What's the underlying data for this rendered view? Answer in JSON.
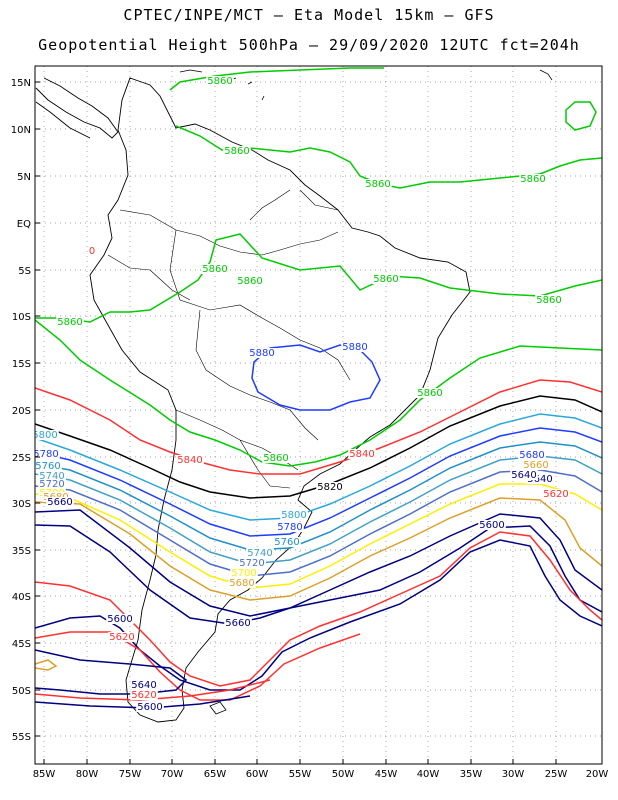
{
  "title_line1": "CPTEC/INPE/MCT –  Eta Model 15km – GFS",
  "title_line2": "Geopotential Height 500hPa – 29/09/2020 12UTC fct=204h",
  "lat_labels": [
    "15N",
    "10N",
    "5N",
    "EQ",
    "5S",
    "10S",
    "15S",
    "20S",
    "25S",
    "30S",
    "35S",
    "40S",
    "45S",
    "50S",
    "55S"
  ],
  "lon_labels": [
    "85W",
    "80W",
    "75W",
    "70W",
    "65W",
    "60W",
    "55W",
    "50W",
    "45W",
    "40W",
    "35W",
    "30W",
    "25W",
    "20W"
  ],
  "colors": {
    "c5880": "#1e3cff",
    "c5860": "#00cc00",
    "c5840": "#ff3030",
    "c5820": "#000000",
    "c5800": "#2aa7dc",
    "c5780": "#1e3cff",
    "c5760": "#1e90c8",
    "c5740": "#40a0c8",
    "c5720": "#4e6ec8",
    "c5700": "#ffee00",
    "c5680": "#dca028",
    "c5660": "#000080",
    "coast": "#000000"
  },
  "contour_labels": [
    {
      "text": "5860",
      "color": "c5860"
    },
    {
      "text": "5860",
      "color": "c5860"
    },
    {
      "text": "5860",
      "color": "c5860"
    },
    {
      "text": "5860",
      "color": "c5860"
    },
    {
      "text": "5860",
      "color": "c5860"
    },
    {
      "text": "5860",
      "color": "c5860"
    },
    {
      "text": "5860",
      "color": "c5860"
    },
    {
      "text": "5860",
      "color": "c5860"
    },
    {
      "text": "5860",
      "color": "c5860"
    },
    {
      "text": "5860",
      "color": "c5860"
    },
    {
      "text": "5860",
      "color": "c5860"
    },
    {
      "text": "5880",
      "color": "c5880"
    },
    {
      "text": "5880",
      "color": "c5880"
    },
    {
      "text": "5840",
      "color": "c5840"
    },
    {
      "text": "5840",
      "color": "c5840"
    },
    {
      "text": "5820",
      "color": "c5820"
    },
    {
      "text": "5800",
      "color": "c5800"
    },
    {
      "text": "5780",
      "color": "c5780"
    },
    {
      "text": "5760",
      "color": "c5760"
    },
    {
      "text": "5740",
      "color": "c5740"
    },
    {
      "text": "5720",
      "color": "c5720"
    },
    {
      "text": "5700",
      "color": "c5700"
    },
    {
      "text": "5680",
      "color": "c5680"
    },
    {
      "text": "5660",
      "color": "c5660"
    },
    {
      "text": "5800",
      "color": "c5800"
    },
    {
      "text": "5780",
      "color": "c5780"
    },
    {
      "text": "5760",
      "color": "c5760"
    },
    {
      "text": "5740",
      "color": "c5740"
    },
    {
      "text": "5720",
      "color": "c5720"
    },
    {
      "text": "5700",
      "color": "c5700"
    },
    {
      "text": "5680",
      "color": "c5680"
    },
    {
      "text": "5660",
      "color": "c5660"
    },
    {
      "text": "5640",
      "color": "c5660"
    },
    {
      "text": "5680",
      "color": "c5780"
    },
    {
      "text": "5660",
      "color": "c5680"
    },
    {
      "text": "5640",
      "color": "c5660"
    },
    {
      "text": "5620",
      "color": "c5840"
    },
    {
      "text": "5600",
      "color": "c5660"
    },
    {
      "text": "5600",
      "color": "c5660"
    },
    {
      "text": "5620",
      "color": "c5840"
    },
    {
      "text": "5640",
      "color": "c5660"
    },
    {
      "text": "5620",
      "color": "c5840"
    },
    {
      "text": "5600",
      "color": "c5660"
    },
    {
      "text": "0",
      "color": "c5840"
    }
  ]
}
